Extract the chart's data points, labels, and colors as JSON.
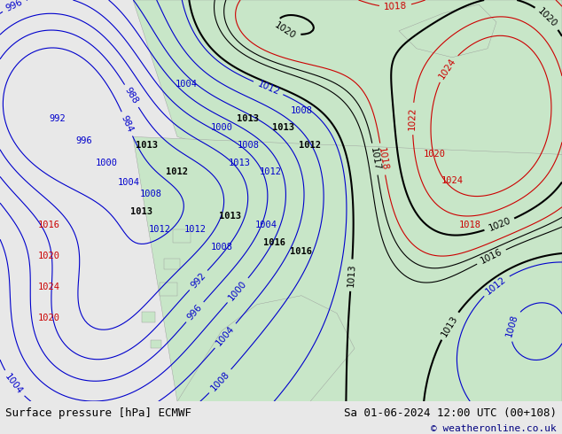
{
  "title_left": "Surface pressure [hPa] ECMWF",
  "title_right": "Sa 01-06-2024 12:00 UTC (00+108)",
  "copyright": "© weatheronline.co.uk",
  "bg_color": "#e8e8e8",
  "map_bg_color": "#d8d8d8",
  "land_color": "#c8e6c8",
  "ocean_color": "#e0e0e0",
  "bottom_bar_color": "#f0f0f0",
  "contour_blue": "#0000cc",
  "contour_black": "#000000",
  "contour_red": "#cc0000",
  "label_fontsize": 7.5,
  "title_fontsize": 9,
  "copyright_fontsize": 8,
  "figsize": [
    6.34,
    4.9
  ],
  "dpi": 100
}
